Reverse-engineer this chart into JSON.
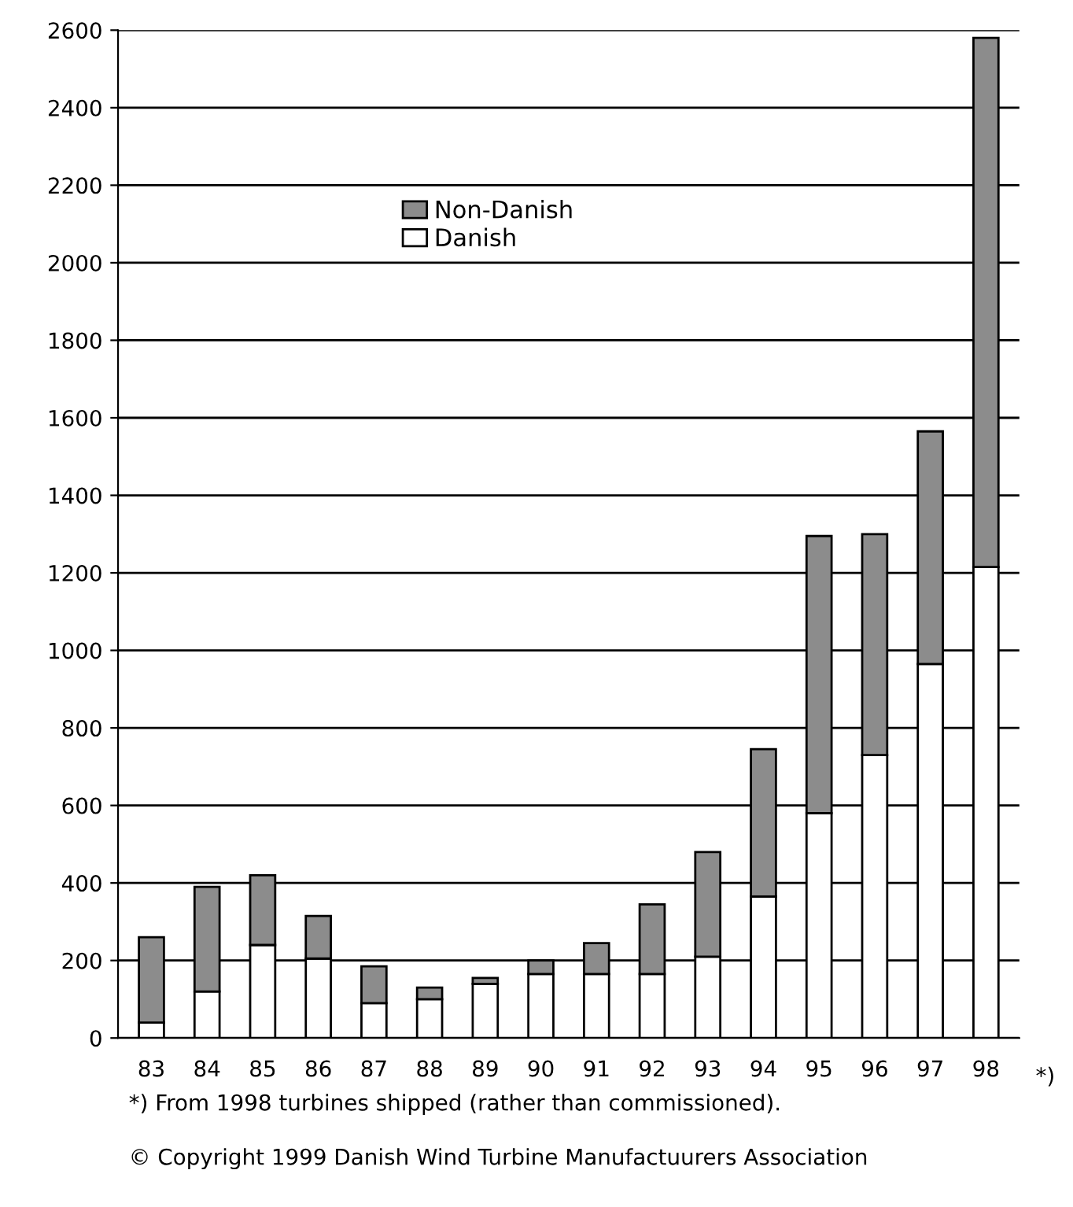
{
  "chart_data": {
    "type": "bar",
    "stacked": true,
    "categories": [
      "83",
      "84",
      "85",
      "86",
      "87",
      "88",
      "89",
      "90",
      "91",
      "92",
      "93",
      "94",
      "95",
      "96",
      "97",
      "98"
    ],
    "series": [
      {
        "name": "Danish",
        "color": "#ffffff",
        "values": [
          40,
          120,
          240,
          205,
          90,
          100,
          140,
          165,
          165,
          165,
          210,
          365,
          580,
          730,
          965,
          1215
        ]
      },
      {
        "name": "Non-Danish",
        "color": "#8c8c8c",
        "values": [
          220,
          270,
          180,
          110,
          95,
          30,
          15,
          35,
          80,
          180,
          270,
          380,
          715,
          570,
          600,
          1365
        ]
      }
    ],
    "ylim": [
      0,
      2600
    ],
    "yticks": [
      0,
      200,
      400,
      600,
      800,
      1000,
      1200,
      1400,
      1600,
      1800,
      2000,
      2200,
      2400,
      2600
    ],
    "grid": "y",
    "legend": "top left",
    "annotations": [
      "*)",
      "*) From 1998 turbines shipped (rather than commissioned).",
      "© Copyright 1999 Danish Wind Turbine Manufactuurers Association"
    ]
  }
}
